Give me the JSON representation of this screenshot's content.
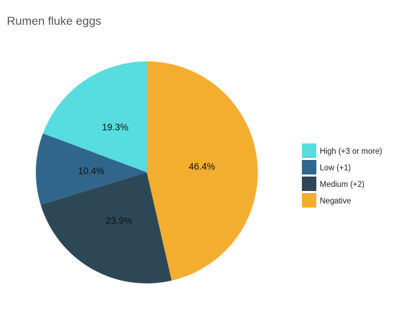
{
  "chart_data": {
    "type": "pie",
    "title": "Rumen fluke eggs",
    "categories": [
      "High (+3 or more)",
      "Low (+1)",
      "Medium (+2)",
      "Negative"
    ],
    "values": [
      19.3,
      10.4,
      23.9,
      46.4
    ],
    "value_labels": [
      "19.3%",
      "10.4%",
      "23.9%",
      "46.4%"
    ],
    "colors": [
      "#57DCE0",
      "#31668C",
      "#2E4756",
      "#F3AE2F"
    ],
    "legend_position": "right"
  }
}
